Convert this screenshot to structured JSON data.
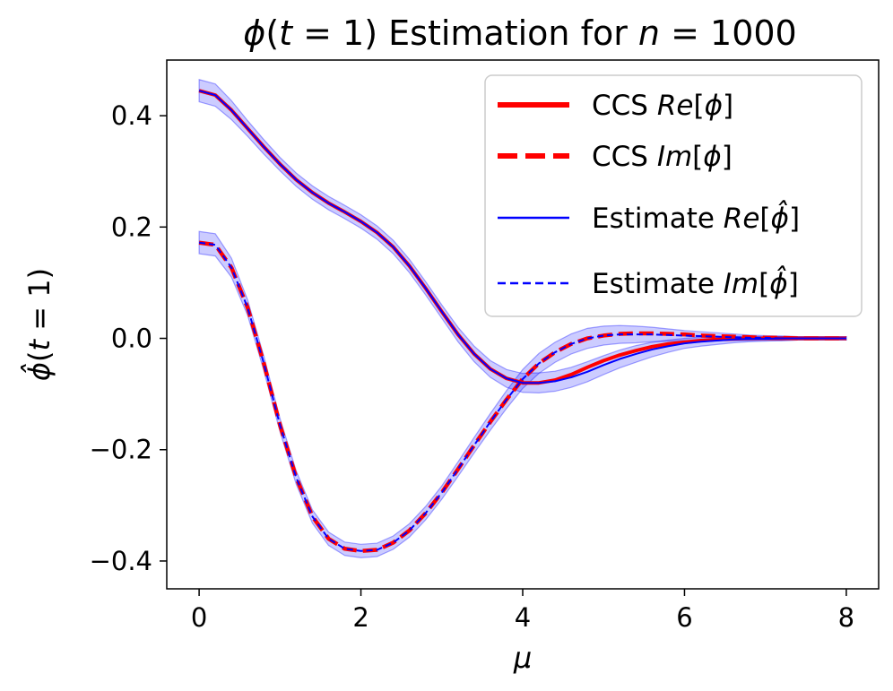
{
  "chart_data": {
    "type": "line",
    "title": "ϕ(t = 1) Estimation for n = 1000",
    "xlabel": "μ",
    "ylabel": "ϕ̂(t = 1)",
    "xlim": [
      -0.4,
      8.4
    ],
    "ylim": [
      -0.45,
      0.5
    ],
    "xticks": [
      0,
      2,
      4,
      6,
      8
    ],
    "xtick_labels": [
      "0",
      "2",
      "4",
      "6",
      "8"
    ],
    "yticks": [
      -0.4,
      -0.2,
      0.0,
      0.2,
      0.4
    ],
    "ytick_labels": [
      "−0.4",
      "−0.2",
      "0.0",
      "0.2",
      "0.4"
    ],
    "grid": false,
    "legend_position": "top-right",
    "x": [
      0,
      0.2,
      0.4,
      0.6,
      0.8,
      1.0,
      1.2,
      1.4,
      1.6,
      1.8,
      2.0,
      2.2,
      2.4,
      2.6,
      2.8,
      3.0,
      3.2,
      3.4,
      3.6,
      3.8,
      4.0,
      4.2,
      4.4,
      4.6,
      4.8,
      5.0,
      5.2,
      5.4,
      5.6,
      5.8,
      6.0,
      6.2,
      6.4,
      6.6,
      6.8,
      7.0,
      7.2,
      7.4,
      7.6,
      7.8,
      8.0
    ],
    "series": [
      {
        "name": "CCS Re[ϕ]",
        "color": "#ff0000",
        "style": "solid",
        "values": [
          0.445,
          0.437,
          0.41,
          0.377,
          0.344,
          0.313,
          0.285,
          0.262,
          0.243,
          0.227,
          0.21,
          0.19,
          0.164,
          0.13,
          0.09,
          0.048,
          0.007,
          -0.028,
          -0.055,
          -0.072,
          -0.08,
          -0.08,
          -0.075,
          -0.065,
          -0.052,
          -0.04,
          -0.03,
          -0.022,
          -0.015,
          -0.01,
          -0.007,
          -0.004,
          -0.002,
          -0.001,
          0.0,
          0.0,
          0.0,
          0.0,
          0.0,
          0.0,
          0.0
        ]
      },
      {
        "name": "CCS Im[ϕ]",
        "color": "#ff0000",
        "style": "dashed",
        "values": [
          0.172,
          0.168,
          0.127,
          0.055,
          -0.045,
          -0.156,
          -0.25,
          -0.32,
          -0.36,
          -0.378,
          -0.382,
          -0.38,
          -0.367,
          -0.345,
          -0.314,
          -0.277,
          -0.235,
          -0.192,
          -0.15,
          -0.11,
          -0.073,
          -0.045,
          -0.025,
          -0.01,
          0.0,
          0.005,
          0.008,
          0.009,
          0.009,
          0.008,
          0.007,
          0.005,
          0.004,
          0.003,
          0.002,
          0.001,
          0.001,
          0.0,
          0.0,
          0.0,
          0.0
        ]
      },
      {
        "name": "Estimate Re[ϕ̂]",
        "color": "#0000ff",
        "style": "solid",
        "values": [
          0.445,
          0.437,
          0.41,
          0.377,
          0.344,
          0.313,
          0.285,
          0.262,
          0.243,
          0.227,
          0.21,
          0.19,
          0.164,
          0.13,
          0.09,
          0.048,
          0.007,
          -0.028,
          -0.055,
          -0.072,
          -0.08,
          -0.08,
          -0.077,
          -0.07,
          -0.06,
          -0.048,
          -0.037,
          -0.028,
          -0.02,
          -0.014,
          -0.009,
          -0.006,
          -0.004,
          -0.002,
          -0.001,
          -0.001,
          0.0,
          0.0,
          0.0,
          0.0,
          0.0
        ]
      },
      {
        "name": "Estimate Im[ϕ̂]",
        "color": "#0000ff",
        "style": "dashed",
        "values": [
          0.172,
          0.168,
          0.127,
          0.055,
          -0.045,
          -0.156,
          -0.25,
          -0.32,
          -0.36,
          -0.378,
          -0.382,
          -0.38,
          -0.367,
          -0.345,
          -0.314,
          -0.277,
          -0.235,
          -0.192,
          -0.15,
          -0.11,
          -0.073,
          -0.045,
          -0.025,
          -0.01,
          0.0,
          0.005,
          0.007,
          0.007,
          0.007,
          0.006,
          0.005,
          0.004,
          0.003,
          0.002,
          0.001,
          0.001,
          0.0,
          0.0,
          0.0,
          0.0,
          0.0
        ]
      }
    ],
    "confidence_band": {
      "color": "#0000ff",
      "opacity": 0.2,
      "half_width": [
        0.02,
        0.02,
        0.017,
        0.014,
        0.013,
        0.012,
        0.012,
        0.012,
        0.012,
        0.012,
        0.012,
        0.012,
        0.012,
        0.012,
        0.012,
        0.012,
        0.013,
        0.014,
        0.015,
        0.016,
        0.017,
        0.018,
        0.018,
        0.018,
        0.018,
        0.017,
        0.016,
        0.015,
        0.013,
        0.011,
        0.009,
        0.008,
        0.007,
        0.006,
        0.005,
        0.004,
        0.004,
        0.003,
        0.003,
        0.003,
        0.003
      ]
    }
  }
}
